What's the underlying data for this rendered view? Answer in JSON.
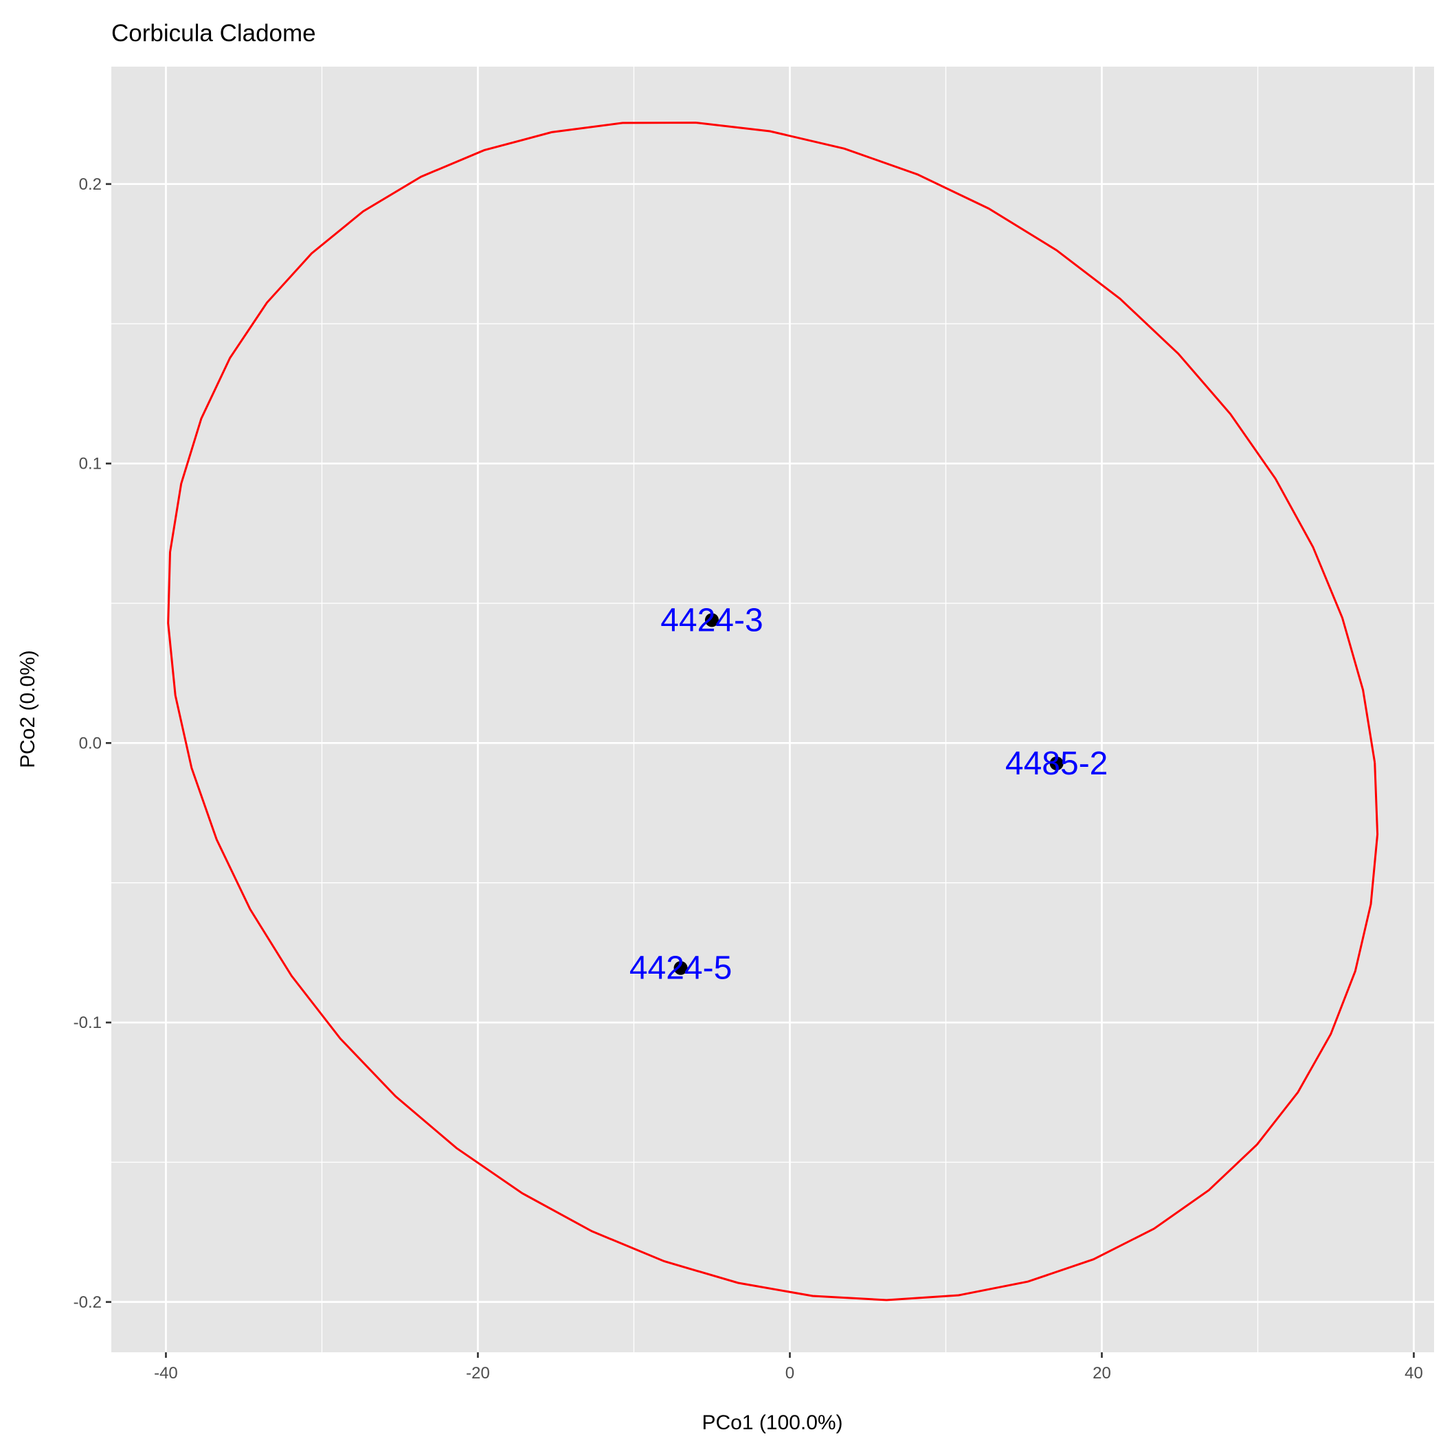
{
  "chart_data": {
    "type": "scatter",
    "title": "Corbicula Cladome",
    "xlabel": "PCo1 (100.0%)",
    "ylabel": "PCo2 (0.0%)",
    "xlim": [
      -43.5,
      41.3
    ],
    "ylim": [
      -0.218,
      0.242
    ],
    "xticks": [
      -40,
      -20,
      0,
      20,
      40
    ],
    "xtick_labels": [
      "-40",
      "-20",
      "0",
      "20",
      "40"
    ],
    "yticks": [
      -0.2,
      -0.1,
      0.0,
      0.1,
      0.2
    ],
    "ytick_labels": [
      "-0.2",
      "-0.1",
      "0.0",
      "0.1",
      "0.2"
    ],
    "grid": true,
    "points": [
      {
        "label": "4424-3",
        "x": -5.0,
        "y": 0.044
      },
      {
        "label": "4485-2",
        "x": 17.1,
        "y": -0.0073
      },
      {
        "label": "4424-5",
        "x": -7.0,
        "y": -0.0805
      }
    ],
    "ellipse": {
      "cx": -1.1,
      "cy": 0.0115,
      "rx": 38.6,
      "ry": 0.21,
      "x_shear": 3.75,
      "y_shear": 0.0185,
      "segments": 51
    },
    "colors": {
      "point": "#000000",
      "label": "#0000FF",
      "ellipse": "#FF0000",
      "panel": "#E5E5E5",
      "grid": "#FFFFFF"
    }
  }
}
